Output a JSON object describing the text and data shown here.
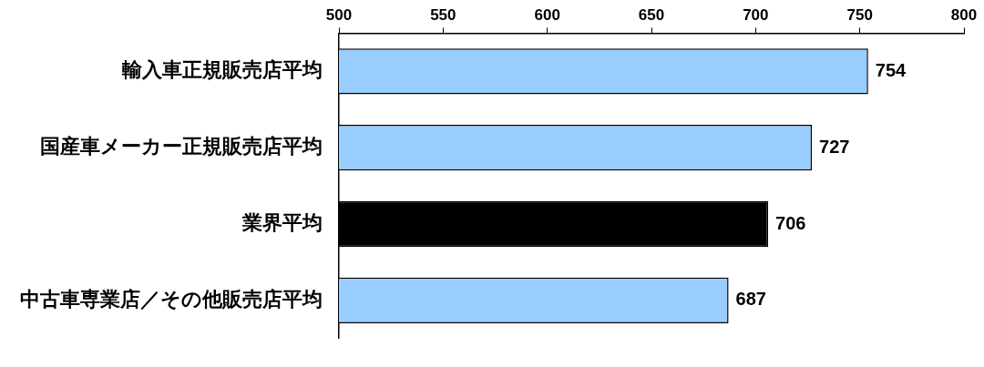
{
  "chart_data": {
    "type": "bar",
    "orientation": "horizontal",
    "categories": [
      "輸入車正規販売店平均",
      "国産車メーカー正規販売店平均",
      "業界平均",
      "中古車専業店／その他販売店平均"
    ],
    "values": [
      754,
      727,
      706,
      687
    ],
    "colors": [
      "#99ccff",
      "#99ccff",
      "#000000",
      "#99ccff"
    ],
    "xlim": [
      500,
      800
    ],
    "xticks": [
      500,
      550,
      600,
      650,
      700,
      750,
      800
    ],
    "data_labels": true,
    "grid": false,
    "legend": false
  }
}
